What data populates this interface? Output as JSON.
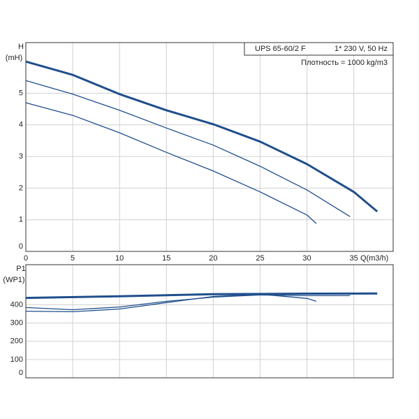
{
  "chart_data": [
    {
      "type": "line",
      "y_label_top": "H",
      "y_label": "(mH)",
      "x_label": "Q(m3/h)",
      "legend_title": "UPS 65-60/2 F",
      "legend_supply": "1* 230 V, 50 Hz",
      "legend_density": "Плотность = 1000 kg/m3",
      "xlim": [
        0,
        39.2
      ],
      "xticks": [
        0,
        5,
        10,
        15,
        20,
        25,
        30,
        35
      ],
      "ylim": [
        0,
        6.6
      ],
      "yticks": [
        0,
        1,
        2,
        3,
        4,
        5
      ],
      "grid": true,
      "series": [
        {
          "color": "#1f4e8c",
          "width": 3,
          "x": [
            0,
            5,
            10,
            15,
            20,
            25,
            30,
            35,
            37.5
          ],
          "values": [
            6.0,
            5.58,
            4.97,
            4.46,
            4.02,
            3.47,
            2.76,
            1.88,
            1.26
          ]
        },
        {
          "color": "#1f4e8c",
          "width": 1.3,
          "x": [
            0,
            5,
            10,
            15,
            20,
            25,
            30,
            34.6
          ],
          "values": [
            5.4,
            4.97,
            4.46,
            3.9,
            3.36,
            2.69,
            1.94,
            1.1
          ]
        },
        {
          "color": "#1f4e8c",
          "width": 1.3,
          "x": [
            0,
            5,
            10,
            15,
            20,
            25,
            30,
            31
          ],
          "values": [
            4.7,
            4.3,
            3.75,
            3.13,
            2.54,
            1.88,
            1.15,
            0.88
          ]
        }
      ]
    },
    {
      "type": "line",
      "y_label_top": "P1",
      "y_label": "(WP1)",
      "xlim": [
        0,
        39.2
      ],
      "ylim": [
        0,
        620
      ],
      "yticks": [
        0,
        100,
        200,
        300,
        400
      ],
      "grid": true,
      "series": [
        {
          "color": "#1f4e8c",
          "width": 3,
          "x": [
            0,
            10,
            20,
            30,
            37.5
          ],
          "values": [
            438,
            447,
            458,
            461,
            462
          ]
        },
        {
          "color": "#1f4e8c",
          "width": 1.3,
          "x": [
            0,
            5,
            10,
            15,
            20,
            25,
            30,
            34.6
          ],
          "values": [
            385,
            373,
            388,
            419,
            442,
            454,
            450,
            450
          ]
        },
        {
          "color": "#1f4e8c",
          "width": 1.3,
          "x": [
            0,
            5,
            10,
            15,
            20,
            25,
            30,
            31
          ],
          "values": [
            365,
            362,
            377,
            412,
            446,
            458,
            435,
            419
          ]
        }
      ]
    }
  ]
}
